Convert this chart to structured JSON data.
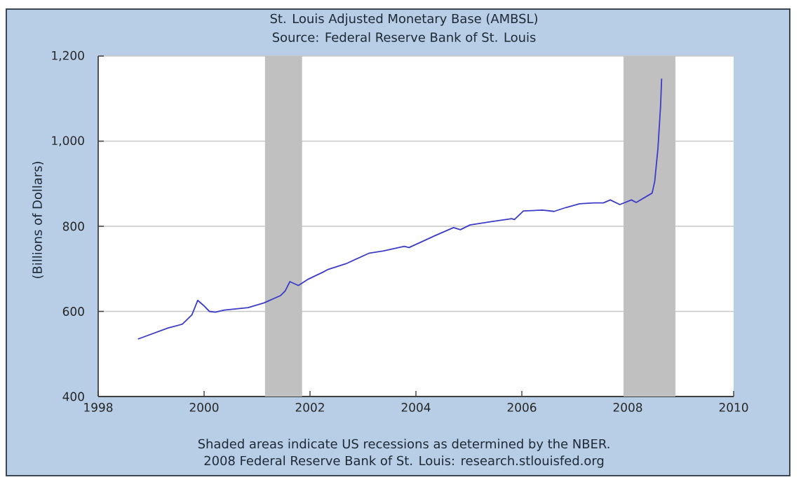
{
  "chart_data": {
    "type": "line",
    "title": "St. Louis Adjusted Monetary Base (AMBSL)",
    "subtitle": "Source: Federal Reserve Bank of St. Louis",
    "ylabel": "(Billions of Dollars)",
    "annotations": [
      "Shaded areas indicate US recessions as determined by the NBER.",
      "2008 Federal Reserve Bank of St. Louis: research.stlouisfed.org"
    ],
    "x": [
      1998.75,
      1999.32,
      1999.59,
      1999.77,
      1999.88,
      1999.99,
      2000.1,
      2000.21,
      2000.38,
      2000.83,
      2001.13,
      2001.44,
      2001.53,
      2001.62,
      2001.78,
      2001.97,
      2002.24,
      2002.33,
      2002.68,
      2003.12,
      2003.39,
      2003.78,
      2003.87,
      2004.36,
      2004.71,
      2004.84,
      2005.02,
      2005.42,
      2005.81,
      2005.86,
      2006.03,
      2006.39,
      2006.61,
      2006.83,
      2007.09,
      2007.36,
      2007.54,
      2007.67,
      2007.85,
      2008.07,
      2008.16,
      2008.46,
      2008.51,
      2008.57,
      2008.62,
      2008.64
    ],
    "series": [
      {
        "color": "#3c3cc8",
        "values": [
          535,
          561,
          570,
          592,
          626,
          614,
          600,
          598,
          603,
          609,
          620,
          637,
          648,
          670,
          661,
          676,
          692,
          698,
          712,
          737,
          742,
          753,
          750,
          778,
          797,
          792,
          803,
          811,
          818,
          816,
          836,
          838,
          835,
          844,
          853,
          855,
          855,
          862,
          851,
          862,
          856,
          878,
          906,
          983,
          1083,
          1147
        ]
      }
    ],
    "xlim": [
      1998,
      2010
    ],
    "ylim": [
      400,
      1200
    ],
    "xticks": [
      1998,
      2000,
      2002,
      2004,
      2006,
      2008,
      2010
    ],
    "yticks": [
      400,
      600,
      800,
      {
        "value": 1000,
        "label": "1,000"
      },
      {
        "value": 1200,
        "label": "1,200"
      }
    ],
    "grid": "y",
    "bands": [
      {
        "axis": "x",
        "from": 2001.15,
        "to": 2001.85,
        "color": "#c0c0c0"
      },
      {
        "axis": "x",
        "from": 2007.92,
        "to": 2008.9,
        "color": "#c0c0c0"
      }
    ]
  }
}
